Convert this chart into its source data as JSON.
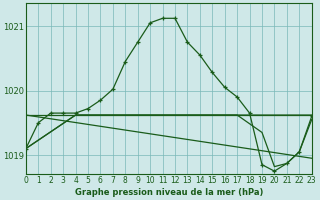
{
  "title": "Graphe pression niveau de la mer (hPa)",
  "background_color": "#cfe8e8",
  "line_color": "#1a5c1a",
  "grid_color": "#7ab8b8",
  "x_min": 0,
  "x_max": 23,
  "y_min": 1018.7,
  "y_max": 1021.35,
  "y_ticks": [
    1019,
    1020,
    1021
  ],
  "x_ticks": [
    0,
    1,
    2,
    3,
    4,
    5,
    6,
    7,
    8,
    9,
    10,
    11,
    12,
    13,
    14,
    15,
    16,
    17,
    18,
    19,
    20,
    21,
    22,
    23
  ],
  "series_main": {
    "x": [
      0,
      1,
      2,
      3,
      4,
      5,
      6,
      7,
      8,
      9,
      10,
      11,
      12,
      13,
      14,
      15,
      16,
      17,
      18,
      19,
      20,
      21,
      22,
      23
    ],
    "y": [
      1019.1,
      1019.5,
      1019.65,
      1019.65,
      1019.65,
      1019.72,
      1019.85,
      1020.02,
      1020.45,
      1020.75,
      1021.05,
      1021.12,
      1021.12,
      1020.75,
      1020.55,
      1020.28,
      1020.05,
      1019.9,
      1019.65,
      1018.85,
      1018.75,
      1018.87,
      1019.05,
      1019.6
    ]
  },
  "series_flat1": {
    "x": [
      0,
      23
    ],
    "y": [
      1019.62,
      1019.62
    ]
  },
  "series_flat2": {
    "x": [
      0,
      4,
      23
    ],
    "y": [
      1019.1,
      1019.62,
      1019.62
    ]
  },
  "series_diag": {
    "x": [
      0,
      23
    ],
    "y": [
      1019.62,
      1018.95
    ]
  },
  "series_lower": {
    "x": [
      0,
      4,
      12,
      17,
      19,
      20,
      21,
      22,
      23
    ],
    "y": [
      1019.1,
      1019.62,
      1019.62,
      1019.62,
      1019.35,
      1018.82,
      1018.87,
      1019.05,
      1019.55
    ]
  }
}
